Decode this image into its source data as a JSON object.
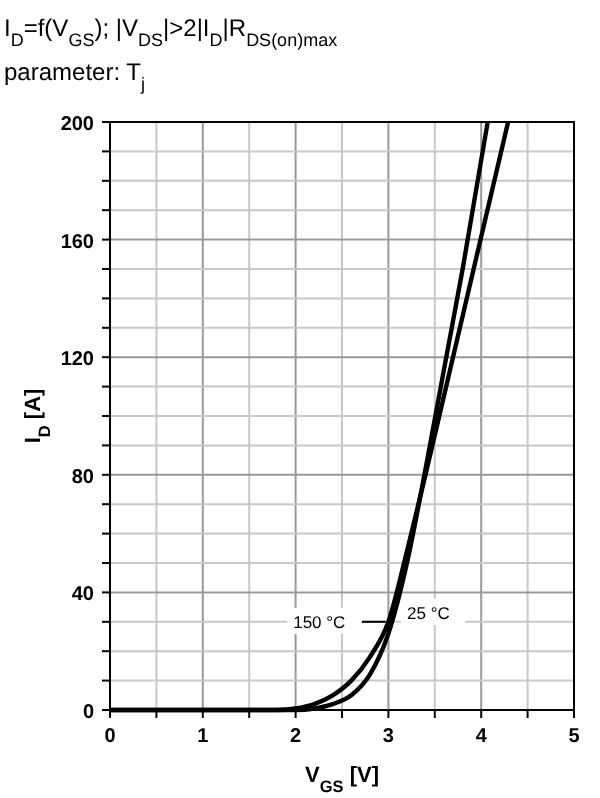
{
  "chart_data": {
    "type": "line",
    "title": "I$_{D}$=f(V$_{GS}$); |V$_{DS}$|>2|I$_{D}$|R$_{DS(on)max}$",
    "subtitle": "parameter: T$_{j}$",
    "xlabel": "V$_{GS}$ [V]",
    "ylabel": "I$_{D}$ [A]",
    "xlim": [
      0,
      5
    ],
    "ylim": [
      0,
      200
    ],
    "xticks": [
      0,
      {
        "value": 0.5,
        "label": null
      },
      1,
      {
        "value": 1.5,
        "label": null
      },
      2,
      {
        "value": 2.5,
        "label": null
      },
      3,
      {
        "value": 3.5,
        "label": null
      },
      4,
      {
        "value": 4.5,
        "label": null
      },
      5
    ],
    "yticks": [
      0,
      {
        "value": 10,
        "label": null
      },
      {
        "value": 20,
        "label": null
      },
      {
        "value": 30,
        "label": null
      },
      40,
      {
        "value": 50,
        "label": null
      },
      {
        "value": 60,
        "label": null
      },
      {
        "value": 70,
        "label": null
      },
      80,
      {
        "value": 90,
        "label": null
      },
      {
        "value": 100,
        "label": null
      },
      {
        "value": 110,
        "label": null
      },
      120,
      {
        "value": 130,
        "label": null
      },
      {
        "value": 140,
        "label": null
      },
      {
        "value": 150,
        "label": null
      },
      160,
      {
        "value": 170,
        "label": null
      },
      {
        "value": 180,
        "label": null
      },
      {
        "value": 190,
        "label": null
      },
      200
    ],
    "grid": true,
    "marker": "none",
    "line_style": "solid",
    "series": [
      {
        "color": "#000000",
        "x": [
          0,
          1.8,
          2.0,
          2.2,
          2.4,
          2.6,
          2.8,
          3.0,
          3.2,
          3.4,
          3.6,
          3.8,
          4.0,
          4.29
        ],
        "values": [
          0,
          0,
          0.5,
          2,
          5,
          10,
          18,
          30,
          54,
          80,
          107,
          134,
          161,
          200
        ]
      },
      {
        "color": "#000000",
        "x": [
          0,
          2.0,
          2.2,
          2.4,
          2.6,
          2.8,
          3.0,
          3.2,
          3.4,
          3.6,
          3.8,
          4.07
        ],
        "values": [
          0,
          0,
          0.5,
          2,
          5,
          12,
          26,
          50,
          82,
          116,
          150,
          200
        ]
      }
    ],
    "annotations": [
      {
        "text": "150 °C",
        "x": 2.97,
        "y": 30
      },
      {
        "text": "25 °C",
        "x": 3.05,
        "y": 33
      }
    ]
  }
}
